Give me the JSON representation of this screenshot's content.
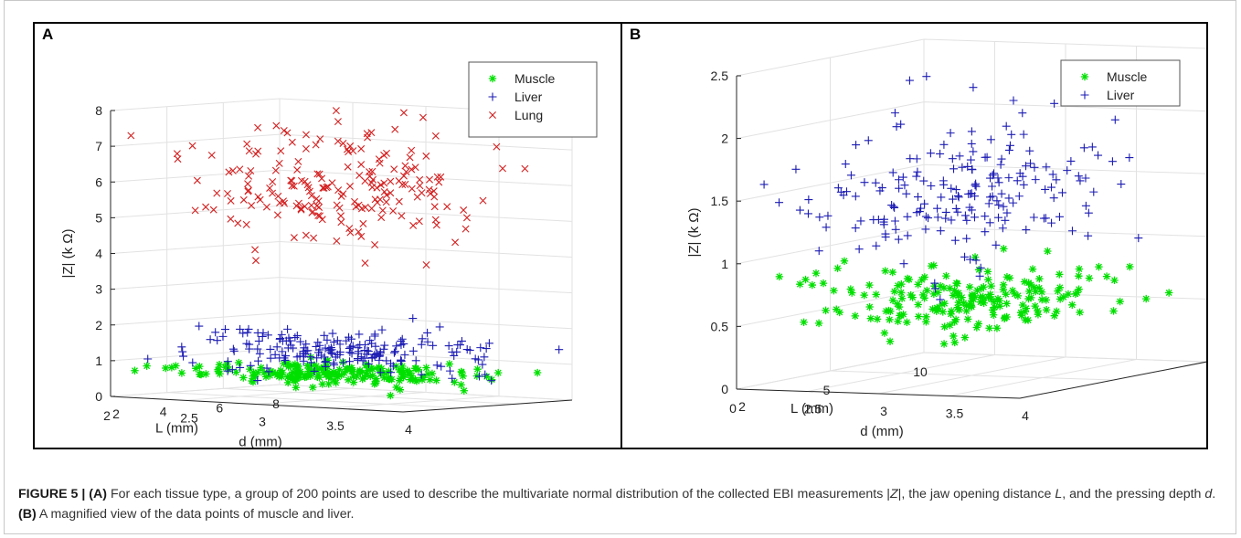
{
  "caption": {
    "figure_label": "FIGURE 5 |",
    "part_a_label": "(A)",
    "part_a_text_1": " For each tissue type, a group of 200 points are used to describe the multivariate normal distribution of the collected EBI measurements |",
    "part_a_z": "Z",
    "part_a_text_2": "|, the jaw opening distance ",
    "part_a_l": "L",
    "part_a_text_3": ", and the pressing depth ",
    "part_a_d": "d",
    "part_a_text_4": ". ",
    "part_b_label": "(B)",
    "part_b_text": " A magnified view of the data points of muscle and liver."
  },
  "colors": {
    "muscle": "#00e000",
    "liver": "#1c1cb4",
    "lung": "#d42020",
    "grid": "#e2e2e2",
    "axis": "#262626"
  },
  "chart_data": [
    {
      "panel": "A",
      "type": "scatter3d",
      "zlabel": "|Z| (k Ω)",
      "xlabel": "L (mm)",
      "ylabel": "d (mm)",
      "z_ticks": [
        "0",
        "1",
        "2",
        "3",
        "4",
        "5",
        "6",
        "7",
        "8"
      ],
      "x_ticks": [
        "2",
        "4",
        "6",
        "8"
      ],
      "y_ticks": [
        "2",
        "2.5",
        "3",
        "3.5",
        "4"
      ],
      "zlim": [
        0,
        8
      ],
      "xlim": [
        2,
        8
      ],
      "ylim": [
        2,
        4
      ],
      "legend_position": "top-right",
      "series": [
        {
          "name": "Muscle",
          "marker": "asterisk",
          "color": "#00e000",
          "count": 200,
          "z_mean": 0.7,
          "z_sd": 0.12
        },
        {
          "name": "Liver",
          "marker": "plus",
          "color": "#1c1cb4",
          "count": 200,
          "z_mean": 1.35,
          "z_sd": 0.3
        },
        {
          "name": "Lung",
          "marker": "cross",
          "color": "#d42020",
          "count": 200,
          "z_mean": 5.9,
          "z_sd": 0.85
        }
      ]
    },
    {
      "panel": "B",
      "type": "scatter3d",
      "zlabel": "|Z| (k Ω)",
      "xlabel": "L (mm)",
      "ylabel": "d (mm)",
      "z_ticks": [
        "0",
        "0.5",
        "1",
        "1.5",
        "2",
        "2.5"
      ],
      "x_ticks": [
        "0",
        "5",
        "10"
      ],
      "y_ticks": [
        "2",
        "2.5",
        "3",
        "3.5",
        "4"
      ],
      "zlim": [
        0,
        2.5
      ],
      "xlim": [
        0,
        10
      ],
      "ylim": [
        2,
        4
      ],
      "legend_position": "top-right",
      "series": [
        {
          "name": "Muscle",
          "marker": "asterisk",
          "color": "#00e000",
          "count": 200,
          "z_mean": 0.62,
          "z_sd": 0.12
        },
        {
          "name": "Liver",
          "marker": "plus",
          "color": "#1c1cb4",
          "count": 200,
          "z_mean": 1.45,
          "z_sd": 0.27
        }
      ]
    }
  ]
}
